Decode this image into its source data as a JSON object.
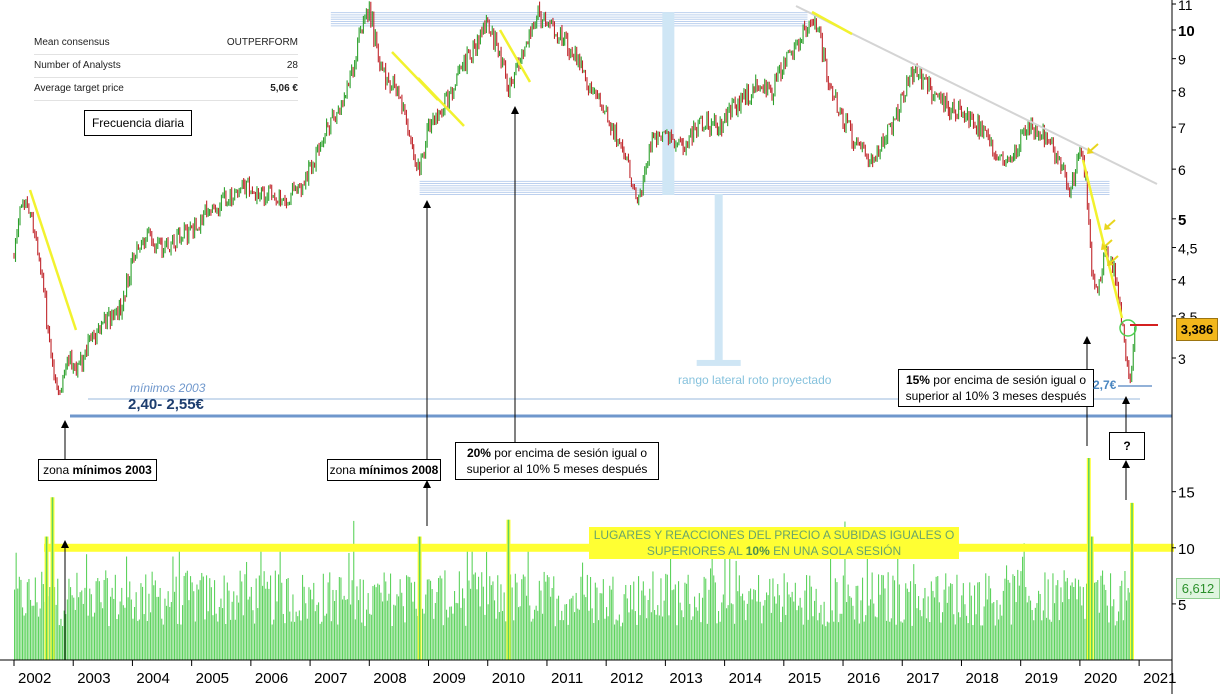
{
  "info_panel": {
    "rows": [
      {
        "label": "Mean consensus",
        "value": "OUTPERFORM"
      },
      {
        "label": "Number of Analysts",
        "value": "28"
      },
      {
        "label": "Average target price",
        "value": "5,06 €"
      }
    ],
    "frequency_label": "Frecuencia diaria"
  },
  "annotations": {
    "minimos_2003_label": "mínimos 2003",
    "minimos_range": "2,40- 2,55€",
    "zona_2003_prefix": "zona ",
    "zona_2003_bold": "mínimos 2003",
    "zona_2008_prefix": "zona ",
    "zona_2008_bold": "mínimos 2008",
    "note_2010_bold": "20%",
    "note_2010_line1": " por encima de sesión igual o",
    "note_2010_line2": "superior al 10% 5 meses después",
    "note_2020_bold": "15%",
    "note_2020_line1": " por encima de sesión igual o",
    "note_2020_line2": "superior al 10% 3 meses después",
    "question_mark": "?",
    "lateral_range_label": "rango lateral roto proyectado",
    "level_27": "2,7€",
    "banner_line1": "LUGARES Y REACCIONES DEL PRECIO A SUBIDAS IGUALES O",
    "banner_line2_pre": "SUPERIORES AL ",
    "banner_line2_bold": "10%",
    "banner_line2_post": " EN UNA SOLA SESIÓN",
    "last_price": "3,386",
    "last_volume": "6,612"
  },
  "chart_data": [
    {
      "type": "candlestick",
      "title": "",
      "y_scale": "log",
      "y_ticks": [
        "11",
        "10",
        "9",
        "8",
        "7",
        "6",
        "5",
        "4,5",
        "4",
        "3,5",
        "3"
      ],
      "x_ticks": [
        "2002",
        "2003",
        "2004",
        "2005",
        "2006",
        "2007",
        "2008",
        "2009",
        "2010",
        "2011",
        "2012",
        "2013",
        "2014",
        "2015",
        "2016",
        "2017",
        "2018",
        "2019",
        "2020",
        "2021"
      ],
      "ylim": [
        2.3,
        11.2
      ],
      "price_path": [
        [
          2002.0,
          4.4
        ],
        [
          2002.15,
          5.4
        ],
        [
          2002.3,
          5.0
        ],
        [
          2002.45,
          4.2
        ],
        [
          2002.6,
          3.2
        ],
        [
          2002.75,
          2.6
        ],
        [
          2002.9,
          3.0
        ],
        [
          2003.1,
          2.9
        ],
        [
          2003.3,
          3.2
        ],
        [
          2003.5,
          3.4
        ],
        [
          2003.8,
          3.6
        ],
        [
          2004.0,
          4.3
        ],
        [
          2004.2,
          4.7
        ],
        [
          2004.5,
          4.5
        ],
        [
          2004.8,
          4.7
        ],
        [
          2005.0,
          4.8
        ],
        [
          2005.3,
          5.2
        ],
        [
          2005.6,
          5.4
        ],
        [
          2005.9,
          5.6
        ],
        [
          2006.2,
          5.5
        ],
        [
          2006.5,
          5.4
        ],
        [
          2006.8,
          5.5
        ],
        [
          2007.0,
          6.0
        ],
        [
          2007.3,
          7.0
        ],
        [
          2007.6,
          7.8
        ],
        [
          2007.9,
          10.3
        ],
        [
          2008.0,
          10.8
        ],
        [
          2008.2,
          8.6
        ],
        [
          2008.5,
          8.0
        ],
        [
          2008.75,
          6.4
        ],
        [
          2008.85,
          5.9
        ],
        [
          2009.0,
          7.0
        ],
        [
          2009.2,
          7.4
        ],
        [
          2009.5,
          8.4
        ],
        [
          2009.8,
          9.5
        ],
        [
          2010.0,
          10.3
        ],
        [
          2010.2,
          9.2
        ],
        [
          2010.35,
          8.2
        ],
        [
          2010.5,
          8.8
        ],
        [
          2010.7,
          9.9
        ],
        [
          2010.85,
          10.6
        ],
        [
          2011.0,
          10.2
        ],
        [
          2011.3,
          9.6
        ],
        [
          2011.6,
          8.6
        ],
        [
          2011.9,
          7.5
        ],
        [
          2012.1,
          7.0
        ],
        [
          2012.3,
          6.4
        ],
        [
          2012.55,
          5.4
        ],
        [
          2012.8,
          6.8
        ],
        [
          2013.0,
          6.9
        ],
        [
          2013.3,
          6.5
        ],
        [
          2013.6,
          7.2
        ],
        [
          2013.9,
          7.0
        ],
        [
          2014.2,
          7.6
        ],
        [
          2014.5,
          8.1
        ],
        [
          2014.8,
          8.0
        ],
        [
          2015.0,
          8.8
        ],
        [
          2015.3,
          9.8
        ],
        [
          2015.5,
          10.5
        ],
        [
          2015.6,
          9.8
        ],
        [
          2015.8,
          8.0
        ],
        [
          2016.0,
          7.2
        ],
        [
          2016.3,
          6.4
        ],
        [
          2016.5,
          6.1
        ],
        [
          2016.8,
          7.0
        ],
        [
          2017.0,
          7.8
        ],
        [
          2017.2,
          8.7
        ],
        [
          2017.5,
          8.0
        ],
        [
          2017.8,
          7.5
        ],
        [
          2018.0,
          7.4
        ],
        [
          2018.3,
          7.0
        ],
        [
          2018.6,
          6.2
        ],
        [
          2018.9,
          6.4
        ],
        [
          2019.1,
          7.1
        ],
        [
          2019.4,
          6.8
        ],
        [
          2019.7,
          6.1
        ],
        [
          2019.85,
          5.5
        ],
        [
          2020.0,
          6.4
        ],
        [
          2020.1,
          5.8
        ],
        [
          2020.2,
          4.2
        ],
        [
          2020.3,
          3.8
        ],
        [
          2020.45,
          4.5
        ],
        [
          2020.6,
          4.0
        ],
        [
          2020.75,
          3.2
        ],
        [
          2020.85,
          2.75
        ],
        [
          2020.95,
          3.386
        ]
      ],
      "horizontal_levels": [
        {
          "name": "mínimos 2003",
          "value": 2.5
        },
        {
          "name": "2,7€",
          "value": 2.7
        },
        {
          "name": "techo rango lateral",
          "value": 10.4
        },
        {
          "name": "suelo rango lateral",
          "value": 5.6
        },
        {
          "name": "último precio",
          "value": 3.386
        }
      ],
      "last_value": 3.386
    },
    {
      "type": "bar",
      "title": "",
      "y_ticks": [
        "15",
        "10",
        "5"
      ],
      "ylim": [
        0,
        18
      ],
      "reference_level": 10,
      "spikes": [
        {
          "x": 2002.55,
          "value": 11
        },
        {
          "x": 2002.65,
          "value": 14.5
        },
        {
          "x": 2008.85,
          "value": 11
        },
        {
          "x": 2010.35,
          "value": 12.5
        },
        {
          "x": 2020.15,
          "value": 18
        },
        {
          "x": 2020.2,
          "value": 11
        },
        {
          "x": 2020.88,
          "value": 14
        }
      ],
      "last_value": 6.612
    }
  ],
  "colors": {
    "up_candle": "#2ca02c",
    "down_candle": "#c0262b",
    "volume": "#5ed35e",
    "highlight": "#ffff33",
    "level_line": "#6f97cc",
    "lateral_projection": "#cfe6f5",
    "trend_line": "#cccccc"
  }
}
